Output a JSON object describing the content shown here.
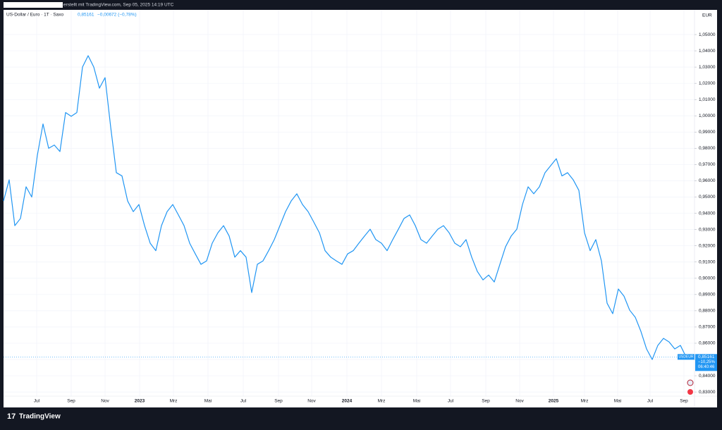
{
  "header": {
    "text": "erstellt mit TradingView.com, Sep 05, 2025 14:19 UTC"
  },
  "footer": {
    "brand": "TradingView"
  },
  "chart_data": {
    "type": "line",
    "legend": {
      "title": "US-Dollar / Euro · 1T · Saxo",
      "price": "0,85161",
      "change": "−0,00672 (−0,78%)"
    },
    "y_unit": "EUR",
    "series": [
      {
        "name": "USDEUR",
        "color": "#2196f3",
        "values": [
          0.9476,
          0.9606,
          0.9324,
          0.9368,
          0.9563,
          0.95,
          0.9758,
          0.995,
          0.98,
          0.982,
          0.978,
          1.002,
          0.9997,
          1.002,
          1.03,
          1.037,
          1.03,
          1.017,
          1.0235,
          0.993,
          0.965,
          0.963,
          0.9476,
          0.941,
          0.9454,
          0.9324,
          0.9216,
          0.917,
          0.9324,
          0.941,
          0.9454,
          0.939,
          0.9324,
          0.9216,
          0.915,
          0.9086,
          0.9107,
          0.9216,
          0.928,
          0.9324,
          0.926,
          0.913,
          0.917,
          0.913,
          0.8912,
          0.9086,
          0.9107,
          0.917,
          0.9238,
          0.9324,
          0.941,
          0.9476,
          0.952,
          0.9454,
          0.941,
          0.9346,
          0.928,
          0.917,
          0.913,
          0.9107,
          0.9086,
          0.915,
          0.917,
          0.9216,
          0.926,
          0.9302,
          0.9238,
          0.9216,
          0.917,
          0.9238,
          0.9302,
          0.9368,
          0.939,
          0.9324,
          0.9238,
          0.9216,
          0.926,
          0.9302,
          0.9324,
          0.928,
          0.9216,
          0.9194,
          0.9238,
          0.913,
          0.9042,
          0.899,
          0.902,
          0.8977,
          0.9086,
          0.9194,
          0.926,
          0.9302,
          0.9454,
          0.9563,
          0.952,
          0.9563,
          0.965,
          0.9693,
          0.9736,
          0.963,
          0.965,
          0.9606,
          0.9541,
          0.928,
          0.917,
          0.9238,
          0.9107,
          0.8847,
          0.8782,
          0.8934,
          0.889,
          0.8804,
          0.876,
          0.8673,
          0.8565,
          0.85,
          0.8587,
          0.863,
          0.8608,
          0.8565,
          0.8587,
          0.85161
        ]
      }
    ],
    "price_tag": {
      "symbol": "USDEUR",
      "price": {
        "value": 0.85161,
        "label": "0,85161"
      },
      "change": "−10,25%",
      "countdown": "06:40:46"
    },
    "xlim": [
      0,
      122.5
    ],
    "xticks": [
      {
        "value": 5.875,
        "label": "Jul"
      },
      {
        "value": 12,
        "label": "Sep"
      },
      {
        "value": 18,
        "label": "Nov"
      },
      {
        "value": 24.125,
        "label": "2023"
      },
      {
        "value": 30.125,
        "label": "Mrz"
      },
      {
        "value": 36.25,
        "label": "Mai"
      },
      {
        "value": 42.5,
        "label": "Jul"
      },
      {
        "value": 48.75,
        "label": "Sep"
      },
      {
        "value": 54.625,
        "label": "Nov"
      },
      {
        "value": 60.875,
        "label": "2024"
      },
      {
        "value": 67,
        "label": "Mrz"
      },
      {
        "value": 73.25,
        "label": "Mai"
      },
      {
        "value": 79.25,
        "label": "Jul"
      },
      {
        "value": 85.5,
        "label": "Sep"
      },
      {
        "value": 91.5,
        "label": "Nov"
      },
      {
        "value": 97.5,
        "label": "2025"
      },
      {
        "value": 103,
        "label": "Mrz"
      },
      {
        "value": 108.875,
        "label": "Mai"
      },
      {
        "value": 114.625,
        "label": "Jul"
      },
      {
        "value": 120.625,
        "label": "Sep"
      }
    ],
    "ylim": [
      0.8205,
      1.0652
    ],
    "yticks": [
      {
        "value": 0.83,
        "label": "0,83000"
      },
      {
        "value": 0.84,
        "label": "0,84000"
      },
      {
        "value": 0.85,
        "label": "0,85000"
      },
      {
        "value": 0.86,
        "label": "0,86000"
      },
      {
        "value": 0.87,
        "label": "0,87000"
      },
      {
        "value": 0.88,
        "label": "0,88000"
      },
      {
        "value": 0.89,
        "label": "0,89000"
      },
      {
        "value": 0.9,
        "label": "0,90000"
      },
      {
        "value": 0.91,
        "label": "0,91000"
      },
      {
        "value": 0.92,
        "label": "0,92000"
      },
      {
        "value": 0.93,
        "label": "0,93000"
      },
      {
        "value": 0.94,
        "label": "0,94000"
      },
      {
        "value": 0.95,
        "label": "0,95000"
      },
      {
        "value": 0.96,
        "label": "0,96000"
      },
      {
        "value": 0.97,
        "label": "0,97000"
      },
      {
        "value": 0.98,
        "label": "0,98000"
      },
      {
        "value": 0.99,
        "label": "0,99000"
      },
      {
        "value": 1,
        "label": "1,00000"
      },
      {
        "value": 1.01,
        "label": "1,01000"
      },
      {
        "value": 1.02,
        "label": "1,02000"
      },
      {
        "value": 1.03,
        "label": "1,03000"
      },
      {
        "value": 1.04,
        "label": "1,04000"
      },
      {
        "value": 1.05,
        "label": "1,05000"
      }
    ],
    "grid": true
  }
}
